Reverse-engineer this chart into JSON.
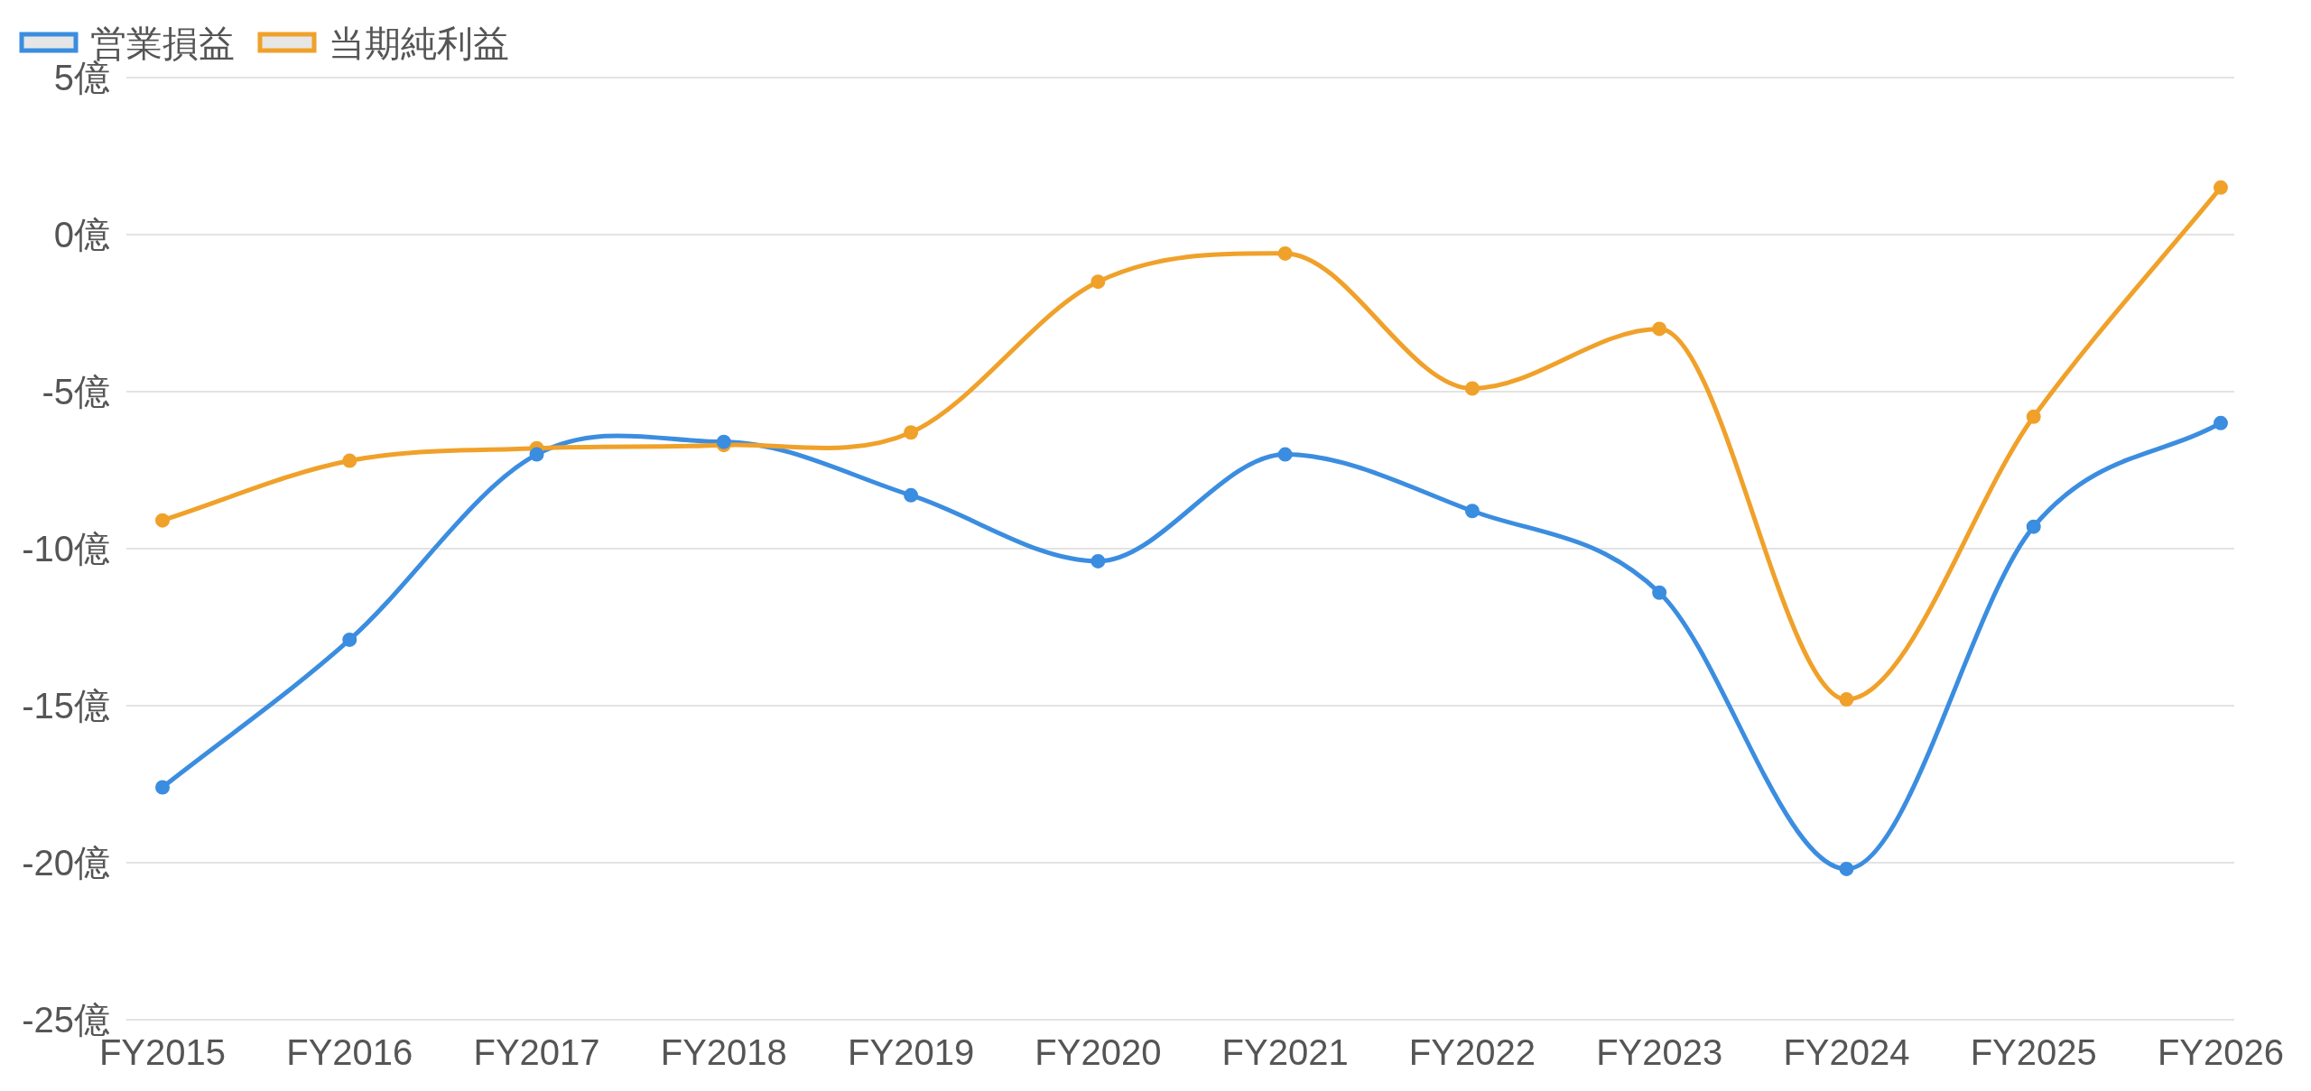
{
  "chart_data": {
    "type": "line",
    "categories": [
      "FY2015",
      "FY2016",
      "FY2017",
      "FY2018",
      "FY2019",
      "FY2020",
      "FY2021",
      "FY2022",
      "FY2023",
      "FY2024",
      "FY2025",
      "FY2026"
    ],
    "series": [
      {
        "name": "営業損益",
        "color": "#3b8de0",
        "values": [
          -17.6,
          -12.9,
          -7.0,
          -6.6,
          -8.3,
          -10.4,
          -7.0,
          -8.8,
          -11.4,
          -20.2,
          -9.3,
          -6.0
        ]
      },
      {
        "name": "当期純利益",
        "color": "#f0a12a",
        "values": [
          -9.1,
          -7.2,
          -6.8,
          -6.7,
          -6.3,
          -1.5,
          -0.6,
          -4.9,
          -3.0,
          -14.8,
          -5.8,
          1.5
        ]
      }
    ],
    "ylim": [
      -25,
      5
    ],
    "yticks": [
      {
        "value": 5,
        "label": "5億"
      },
      {
        "value": 0,
        "label": "0億"
      },
      {
        "value": -5,
        "label": "-5億"
      },
      {
        "value": -10,
        "label": "-10億"
      },
      {
        "value": -15,
        "label": "-15億"
      },
      {
        "value": -20,
        "label": "-20億"
      },
      {
        "value": -25,
        "label": "-25億"
      }
    ],
    "grid": "y",
    "legend": "top left",
    "marker": "circle"
  }
}
